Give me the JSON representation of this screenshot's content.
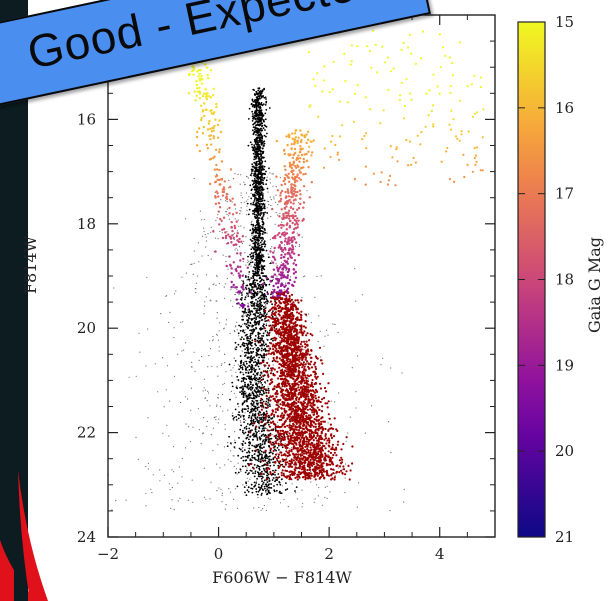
{
  "banner": {
    "text": "Good - Expecte"
  },
  "chart_data": {
    "type": "scatter",
    "title": "",
    "xlabel": "F606W − F814W",
    "ylabel": "F814W",
    "xlim": [
      -2,
      5
    ],
    "ylim": [
      24,
      14
    ],
    "x_ticks": [
      -2,
      0,
      2,
      4
    ],
    "y_ticks": [
      16,
      18,
      20,
      22,
      24
    ],
    "y_inverted": true,
    "grid": false,
    "colorbar": {
      "label": "Gaia G Mag",
      "ticks": [
        15,
        16,
        17,
        18,
        19,
        20,
        21
      ],
      "range": [
        15,
        21
      ],
      "colormap": "plasma"
    },
    "series": [
      {
        "name": "",
        "color": "#000000",
        "description_points": [
          {
            "x": 0.7,
            "y": 15.8
          },
          {
            "x": 0.72,
            "y": 17.0
          },
          {
            "x": 0.7,
            "y": 18.5
          },
          {
            "x": 0.55,
            "y": 19.5
          },
          {
            "x": 0.5,
            "y": 20.5
          },
          {
            "x": 0.6,
            "y": 21.5
          },
          {
            "x": 0.8,
            "y": 22.5
          },
          {
            "x": 0.9,
            "y": 23.0
          }
        ]
      },
      {
        "name": "",
        "color": "#a00000",
        "description_points": [
          {
            "x": 1.1,
            "y": 19.5
          },
          {
            "x": 1.2,
            "y": 20.5
          },
          {
            "x": 1.3,
            "y": 21.5
          },
          {
            "x": 1.5,
            "y": 22.3
          },
          {
            "x": 1.8,
            "y": 22.6
          }
        ]
      }
    ],
    "colors": {
      "axis": "#222222",
      "background": "#ffffff",
      "frame_dark": "#0c1c20",
      "frame_red": "#e0111a",
      "banner_blue": "#4a8ff0"
    }
  }
}
